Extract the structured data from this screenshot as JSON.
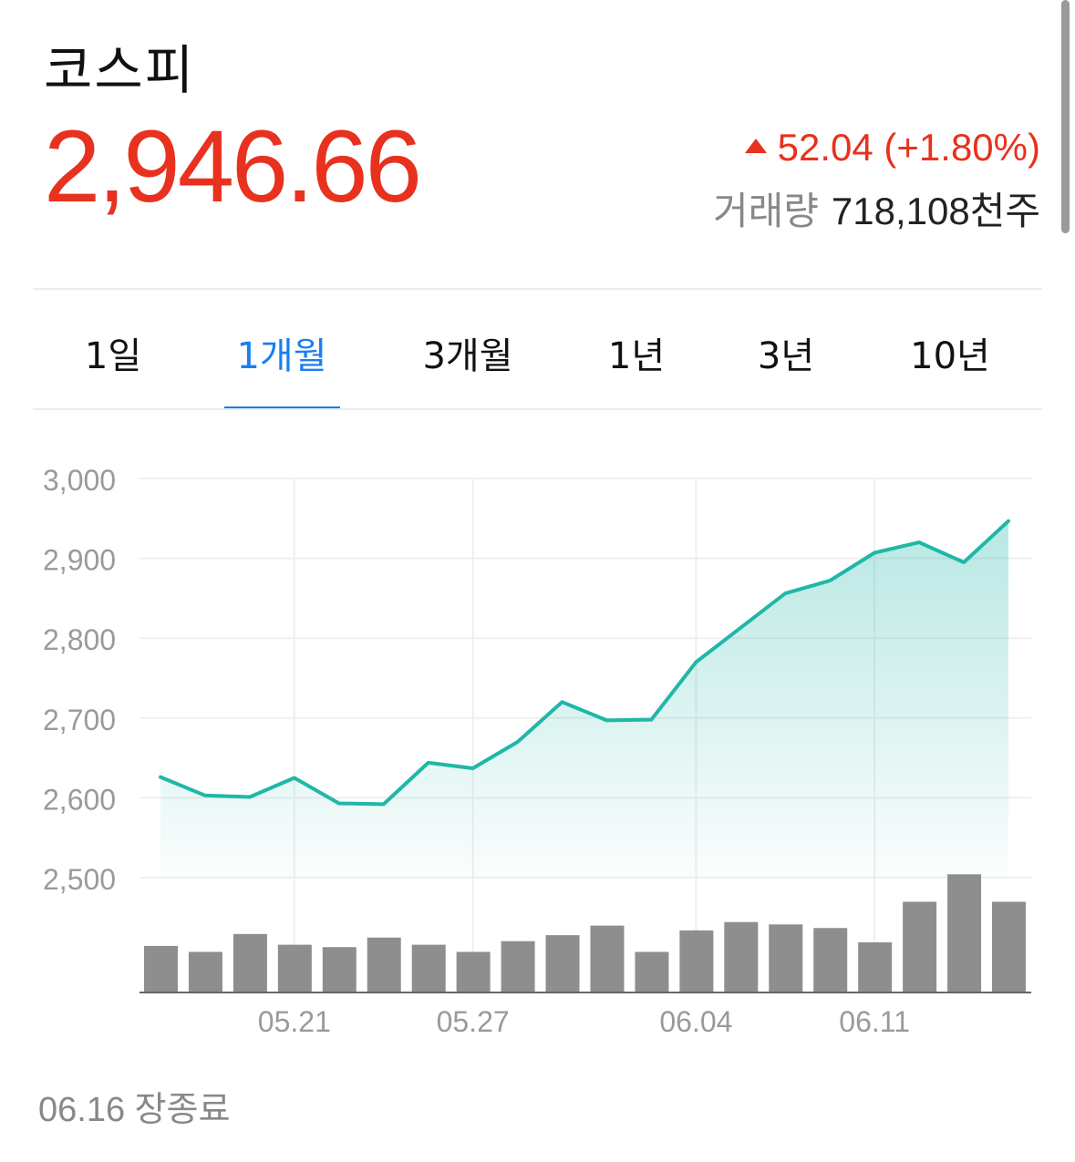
{
  "header": {
    "name": "코스피",
    "price": "2,946.66",
    "change": "52.04 (+1.80%)",
    "volume_label": "거래량",
    "volume_value": "718,108천주",
    "up_color": "#e8311e"
  },
  "tabs": [
    {
      "label": "1일",
      "active": false
    },
    {
      "label": "1개월",
      "active": true
    },
    {
      "label": "3개월",
      "active": false
    },
    {
      "label": "1년",
      "active": false
    },
    {
      "label": "3년",
      "active": false
    },
    {
      "label": "10년",
      "active": false
    }
  ],
  "footer": "06.16 장종료",
  "chart_data": {
    "type": "line",
    "line_color": "#1fb7a8",
    "bar_color": "#8e8e8e",
    "ylim": [
      2500,
      3000
    ],
    "y_ticks": [
      "3,000",
      "2,900",
      "2,800",
      "2,700",
      "2,600",
      "2,500"
    ],
    "y_tick_values": [
      3000,
      2900,
      2800,
      2700,
      2600,
      2500
    ],
    "x_ticks": [
      {
        "label": "05.21",
        "index": 3
      },
      {
        "label": "05.27",
        "index": 7
      },
      {
        "label": "06.04",
        "index": 12
      },
      {
        "label": "06.11",
        "index": 16
      }
    ],
    "series": [
      {
        "values": [
          2626,
          2603,
          2601,
          2625,
          2593,
          2592,
          2644,
          2637,
          2670,
          2720,
          2697,
          2698,
          2770,
          2813,
          2856,
          2872,
          2907,
          2920,
          2895,
          2946.66
        ]
      }
    ],
    "volume_relative": [
      0.39,
      0.34,
      0.49,
      0.4,
      0.38,
      0.46,
      0.4,
      0.34,
      0.43,
      0.48,
      0.56,
      0.34,
      0.52,
      0.59,
      0.57,
      0.54,
      0.42,
      0.76,
      0.99,
      0.76
    ]
  }
}
